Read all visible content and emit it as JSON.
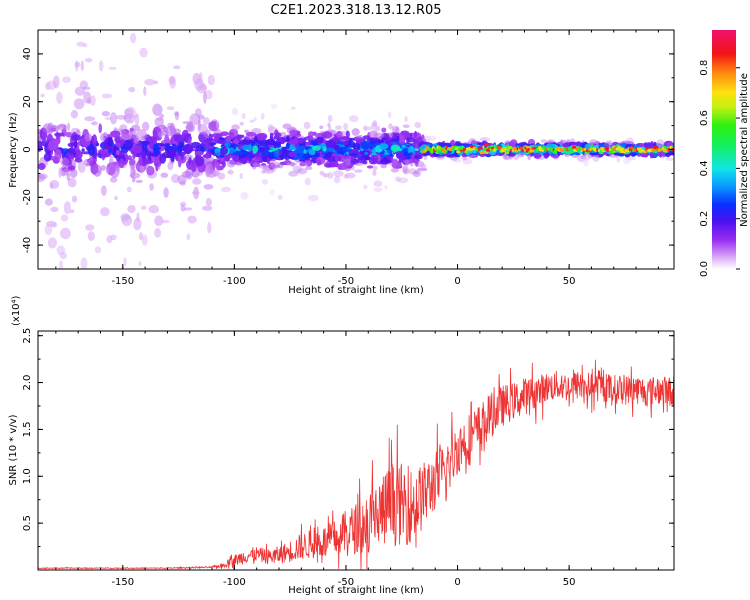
{
  "figure": {
    "title": "C2E1.2023.318.13.12.R05"
  },
  "colors": {
    "snr_line": "#ee3333",
    "axis": "#000000"
  },
  "colorbar": {
    "label": "Normalized spectral amplitude",
    "range": [
      0.0,
      0.95
    ],
    "ticks": [
      "0.0",
      "0.2",
      "0.4",
      "0.6",
      "0.8"
    ],
    "tick_values": [
      0.0,
      0.2,
      0.4,
      0.6,
      0.8
    ],
    "colormap": "rainbow (white-purple-blue-cyan-green-yellow-red-magenta)"
  },
  "chart_data": [
    {
      "type": "heatmap",
      "title": "",
      "xlabel": "Height of straight line (km)",
      "ylabel": "Frequency (Hz)",
      "xlim": [
        -188,
        97
      ],
      "ylim": [
        -50,
        50
      ],
      "xticks": [
        -150,
        -100,
        -50,
        0,
        50
      ],
      "xtick_labels": [
        "-150",
        "-100",
        "-50",
        "0",
        "50"
      ],
      "yticks": [
        -40,
        -20,
        0,
        20,
        40
      ],
      "ytick_labels": [
        "-40",
        "-20",
        "0",
        "20",
        "40"
      ],
      "grid": false,
      "segments": [
        {
          "x_start": -188,
          "x_end": -108,
          "freq_spread_hz": 48,
          "core_spread_hz": 10,
          "peak_amplitude": 0.3
        },
        {
          "x_start": -108,
          "x_end": -15,
          "freq_spread_hz": 12,
          "core_spread_hz": 6,
          "peak_amplitude": 0.5
        },
        {
          "x_start": -15,
          "x_end": 97,
          "freq_spread_hz": 3,
          "core_spread_hz": 1.5,
          "peak_amplitude": 0.95
        }
      ]
    },
    {
      "type": "line",
      "title": "",
      "xlabel": "Height of straight line (km)",
      "ylabel": "SNR (10 * v/v)",
      "exponent_label": "(x10⁴)",
      "xlim": [
        -188,
        97
      ],
      "ylim": [
        0,
        2.55
      ],
      "xticks": [
        -150,
        -100,
        -50,
        0,
        50
      ],
      "xtick_labels": [
        "-150",
        "-100",
        "-50",
        "0",
        "50"
      ],
      "yticks": [
        0.5,
        1.0,
        1.5,
        2.0,
        2.5
      ],
      "ytick_labels": [
        "0.5",
        "1.0",
        "1.5",
        "2.0",
        "2.5"
      ],
      "grid": false,
      "series": [
        {
          "name": "",
          "x": [
            -188,
            -170,
            -150,
            -130,
            -110,
            -105,
            -100,
            -95,
            -90,
            -85,
            -80,
            -75,
            -70,
            -65,
            -60,
            -55,
            -50,
            -45,
            -40,
            -35,
            -30,
            -25,
            -20,
            -15,
            -10,
            -5,
            0,
            5,
            10,
            15,
            20,
            25,
            30,
            35,
            40,
            45,
            50,
            55,
            60,
            65,
            70,
            75,
            80,
            85,
            90,
            97
          ],
          "y": [
            0.02,
            0.02,
            0.02,
            0.02,
            0.03,
            0.05,
            0.1,
            0.15,
            0.17,
            0.14,
            0.16,
            0.2,
            0.25,
            0.28,
            0.3,
            0.33,
            0.4,
            0.45,
            0.5,
            0.6,
            0.7,
            0.7,
            0.68,
            0.8,
            0.95,
            1.05,
            1.3,
            1.4,
            1.5,
            1.65,
            1.75,
            1.8,
            1.85,
            1.9,
            1.95,
            1.97,
            1.95,
            1.98,
            1.95,
            1.95,
            1.93,
            1.92,
            1.93,
            1.9,
            1.92,
            1.9
          ],
          "noise_amplitude": [
            0.005,
            0.005,
            0.005,
            0.005,
            0.01,
            0.03,
            0.08,
            0.1,
            0.1,
            0.1,
            0.12,
            0.15,
            0.18,
            0.2,
            0.22,
            0.25,
            0.3,
            0.35,
            0.45,
            0.5,
            0.55,
            0.55,
            0.5,
            0.45,
            0.4,
            0.4,
            0.35,
            0.35,
            0.35,
            0.3,
            0.28,
            0.25,
            0.25,
            0.22,
            0.2,
            0.2,
            0.2,
            0.2,
            0.2,
            0.2,
            0.2,
            0.2,
            0.2,
            0.2,
            0.2,
            0.2
          ]
        }
      ]
    }
  ]
}
